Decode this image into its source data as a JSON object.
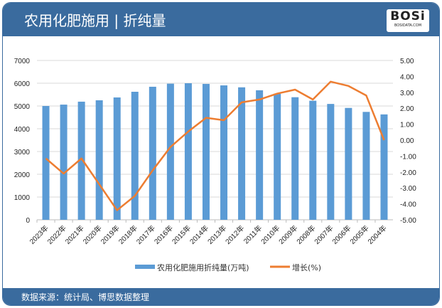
{
  "header": {
    "title": "农用化肥施用 | 折纯量",
    "logo_text": "BOSi",
    "logo_sub": "BOSIDATA.COM"
  },
  "footer": {
    "source": "数据来源：统计局、博思数据整理"
  },
  "colors": {
    "header": "#3a6b9e",
    "bar": "#5b9bd5",
    "line": "#ed7d31"
  },
  "chart_data": {
    "type": "bar+line",
    "categories": [
      "2023年",
      "2022年",
      "2021年",
      "2020年",
      "2019年",
      "2018年",
      "2017年",
      "2016年",
      "2015年",
      "2014年",
      "2013年",
      "2012年",
      "2011年",
      "2010年",
      "2009年",
      "2008年",
      "2007年",
      "2006年",
      "2005年",
      "2004年"
    ],
    "series": [
      {
        "name": "农用化肥施用折纯量(万吨)",
        "type": "bar",
        "axis": "left",
        "values": [
          5000,
          5060,
          5190,
          5250,
          5375,
          5625,
          5845,
          5980,
          6000,
          5970,
          5905,
          5820,
          5690,
          5540,
          5385,
          5230,
          5090,
          4915,
          4740,
          4630
        ]
      },
      {
        "name": "增长(%)",
        "type": "line",
        "axis": "right",
        "values": [
          -1.15,
          -2.1,
          -1.15,
          -2.77,
          -4.4,
          -3.5,
          -1.9,
          -0.43,
          0.54,
          1.4,
          1.25,
          2.37,
          2.55,
          2.92,
          3.17,
          2.55,
          3.67,
          3.4,
          2.8,
          0.0
        ]
      }
    ],
    "left_axis": {
      "ylim": [
        0,
        7000
      ],
      "ticks": [
        "0",
        "1000",
        "2000",
        "3000",
        "4000",
        "5000",
        "6000",
        "7000"
      ]
    },
    "right_axis": {
      "ylim": [
        -5,
        5
      ],
      "ticks": [
        "-5.00",
        "-4.00",
        "-3.00",
        "-2.00",
        "-1.00",
        "0.00",
        "1.00",
        "2.00",
        "3.00",
        "4.00",
        "5.00"
      ]
    },
    "grid": true,
    "legend": "bottom"
  }
}
